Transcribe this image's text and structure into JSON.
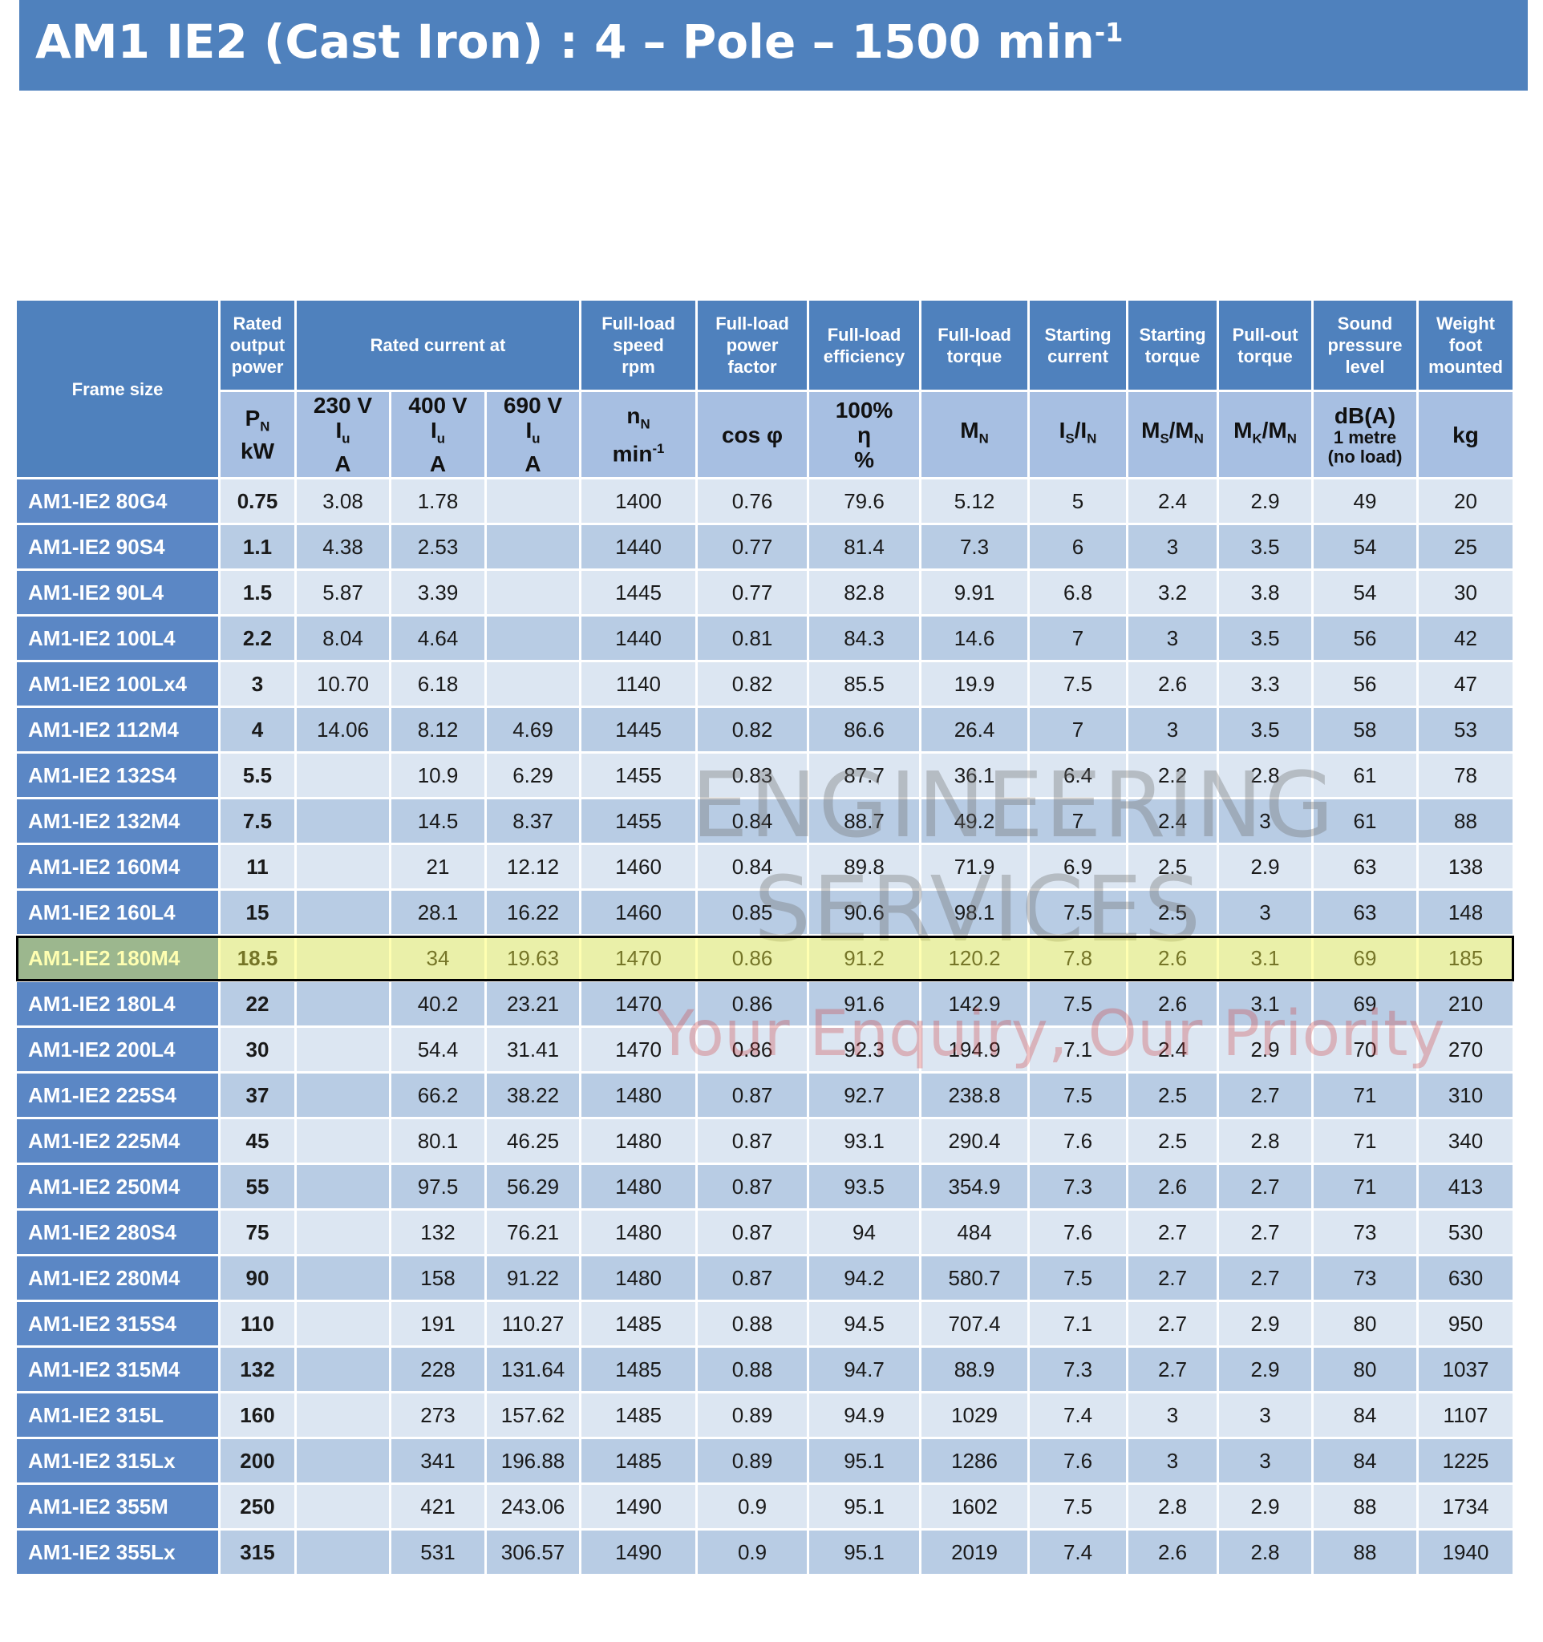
{
  "header": {
    "title": "AM1 IE2 (Cast Iron) : 4 – Pole – 1500 min",
    "title_sup": "-1"
  },
  "table": {
    "header_groups": [
      {
        "lines": [
          "Frame size"
        ],
        "rowspan": 2
      },
      {
        "lines": [
          "Rated",
          "output",
          "power"
        ]
      },
      {
        "lines": [
          "Rated current at"
        ],
        "colspan": 3
      },
      {
        "lines": [
          "Full-load",
          "speed",
          "rpm"
        ]
      },
      {
        "lines": [
          "Full-load",
          "power",
          "factor"
        ]
      },
      {
        "lines": [
          "Full-load",
          "efficiency"
        ]
      },
      {
        "lines": [
          "Full-load",
          "torque"
        ]
      },
      {
        "lines": [
          "Starting",
          "current"
        ]
      },
      {
        "lines": [
          "Starting",
          "torque"
        ]
      },
      {
        "lines": [
          "Pull-out",
          "torque"
        ]
      },
      {
        "lines": [
          "Sound",
          "pressure",
          "level"
        ]
      },
      {
        "lines": [
          "Weight",
          "foot",
          "mounted"
        ]
      }
    ],
    "units": [
      [
        [
          {
            "text": "P",
            "sub": "N"
          }
        ],
        "kW"
      ],
      [
        "230 V",
        [
          {
            "text": "I",
            "sub": "u"
          }
        ],
        "A"
      ],
      [
        "400 V",
        [
          {
            "text": "I",
            "sub": "u"
          }
        ],
        "A"
      ],
      [
        "690 V",
        [
          {
            "text": "I",
            "sub": "u"
          }
        ],
        "A"
      ],
      [
        [
          {
            "text": "n",
            "sub": "N"
          }
        ],
        [
          {
            "text": "min",
            "sup": "-1"
          }
        ]
      ],
      [
        "cos φ"
      ],
      [
        "100%",
        "η",
        "%"
      ],
      [
        [
          {
            "text": "M",
            "sub": "N"
          }
        ]
      ],
      [
        [
          {
            "text": "I",
            "sub": "S"
          },
          {
            "text": "/I",
            "sub": "N"
          }
        ]
      ],
      [
        [
          {
            "text": "M",
            "sub": "S"
          },
          {
            "text": "/M",
            "sub": "N"
          }
        ]
      ],
      [
        [
          {
            "text": "M",
            "sub": "K"
          },
          {
            "text": "/M",
            "sub": "N"
          }
        ]
      ],
      [
        "dB(A)",
        "1 metre",
        "(no load)"
      ],
      [
        "kg"
      ]
    ],
    "rows": [
      [
        "AM1-IE2 80G4",
        "0.75",
        "3.08",
        "1.78",
        null,
        "1400",
        "0.76",
        "79.6",
        "5.12",
        "5",
        "2.4",
        "2.9",
        "49",
        "20"
      ],
      [
        "AM1-IE2 90S4",
        "1.1",
        "4.38",
        "2.53",
        null,
        "1440",
        "0.77",
        "81.4",
        "7.3",
        "6",
        "3",
        "3.5",
        "54",
        "25"
      ],
      [
        "AM1-IE2 90L4",
        "1.5",
        "5.87",
        "3.39",
        null,
        "1445",
        "0.77",
        "82.8",
        "9.91",
        "6.8",
        "3.2",
        "3.8",
        "54",
        "30"
      ],
      [
        "AM1-IE2 100L4",
        "2.2",
        "8.04",
        "4.64",
        null,
        "1440",
        "0.81",
        "84.3",
        "14.6",
        "7",
        "3",
        "3.5",
        "56",
        "42"
      ],
      [
        "AM1-IE2 100Lx4",
        "3",
        "10.70",
        "6.18",
        null,
        "1140",
        "0.82",
        "85.5",
        "19.9",
        "7.5",
        "2.6",
        "3.3",
        "56",
        "47"
      ],
      [
        "AM1-IE2 112M4",
        "4",
        "14.06",
        "8.12",
        "4.69",
        "1445",
        "0.82",
        "86.6",
        "26.4",
        "7",
        "3",
        "3.5",
        "58",
        "53"
      ],
      [
        "AM1-IE2 132S4",
        "5.5",
        null,
        "10.9",
        "6.29",
        "1455",
        "0.83",
        "87.7",
        "36.1",
        "6.4",
        "2.2",
        "2.8",
        "61",
        "78"
      ],
      [
        "AM1-IE2 132M4",
        "7.5",
        null,
        "14.5",
        "8.37",
        "1455",
        "0.84",
        "88.7",
        "49.2",
        "7",
        "2.4",
        "3",
        "61",
        "88"
      ],
      [
        "AM1-IE2 160M4",
        "11",
        null,
        "21",
        "12.12",
        "1460",
        "0.84",
        "89.8",
        "71.9",
        "6.9",
        "2.5",
        "2.9",
        "63",
        "138"
      ],
      [
        "AM1-IE2 160L4",
        "15",
        null,
        "28.1",
        "16.22",
        "1460",
        "0.85",
        "90.6",
        "98.1",
        "7.5",
        "2.5",
        "3",
        "63",
        "148"
      ],
      [
        "AM1-IE2 180M4",
        "18.5",
        null,
        "34",
        "19.63",
        "1470",
        "0.86",
        "91.2",
        "120.2",
        "7.8",
        "2.6",
        "3.1",
        "69",
        "185"
      ],
      [
        "AM1-IE2 180L4",
        "22",
        null,
        "40.2",
        "23.21",
        "1470",
        "0.86",
        "91.6",
        "142.9",
        "7.5",
        "2.6",
        "3.1",
        "69",
        "210"
      ],
      [
        "AM1-IE2 200L4",
        "30",
        null,
        "54.4",
        "31.41",
        "1470",
        "0.86",
        "92.3",
        "194.9",
        "7.1",
        "2.4",
        "2.9",
        "70",
        "270"
      ],
      [
        "AM1-IE2 225S4",
        "37",
        null,
        "66.2",
        "38.22",
        "1480",
        "0.87",
        "92.7",
        "238.8",
        "7.5",
        "2.5",
        "2.7",
        "71",
        "310"
      ],
      [
        "AM1-IE2 225M4",
        "45",
        null,
        "80.1",
        "46.25",
        "1480",
        "0.87",
        "93.1",
        "290.4",
        "7.6",
        "2.5",
        "2.8",
        "71",
        "340"
      ],
      [
        "AM1-IE2 250M4",
        "55",
        null,
        "97.5",
        "56.29",
        "1480",
        "0.87",
        "93.5",
        "354.9",
        "7.3",
        "2.6",
        "2.7",
        "71",
        "413"
      ],
      [
        "AM1-IE2 280S4",
        "75",
        null,
        "132",
        "76.21",
        "1480",
        "0.87",
        "94",
        "484",
        "7.6",
        "2.7",
        "2.7",
        "73",
        "530"
      ],
      [
        "AM1-IE2 280M4",
        "90",
        null,
        "158",
        "91.22",
        "1480",
        "0.87",
        "94.2",
        "580.7",
        "7.5",
        "2.7",
        "2.7",
        "73",
        "630"
      ],
      [
        "AM1-IE2 315S4",
        "110",
        null,
        "191",
        "110.27",
        "1485",
        "0.88",
        "94.5",
        "707.4",
        "7.1",
        "2.7",
        "2.9",
        "80",
        "950"
      ],
      [
        "AM1-IE2 315M4",
        "132",
        null,
        "228",
        "131.64",
        "1485",
        "0.88",
        "94.7",
        "88.9",
        "7.3",
        "2.7",
        "2.9",
        "80",
        "1037"
      ],
      [
        "AM1-IE2 315L",
        "160",
        null,
        "273",
        "157.62",
        "1485",
        "0.89",
        "94.9",
        "1029",
        "7.4",
        "3",
        "3",
        "84",
        "1107"
      ],
      [
        "AM1-IE2 315Lx",
        "200",
        null,
        "341",
        "196.88",
        "1485",
        "0.89",
        "95.1",
        "1286",
        "7.6",
        "3",
        "3",
        "84",
        "1225"
      ],
      [
        "AM1-IE2 355M",
        "250",
        null,
        "421",
        "243.06",
        "1490",
        "0.9",
        "95.1",
        "1602",
        "7.5",
        "2.8",
        "2.9",
        "88",
        "1734"
      ],
      [
        "AM1-IE2 355Lx",
        "315",
        null,
        "531",
        "306.57",
        "1490",
        "0.9",
        "95.1",
        "2019",
        "7.4",
        "2.6",
        "2.8",
        "88",
        "1940"
      ]
    ],
    "highlight_row": 10
  },
  "watermark": {
    "line1": "ENGINEERING",
    "line2": "SERVICES",
    "tagline": "Your Enquiry, Our Priority"
  }
}
